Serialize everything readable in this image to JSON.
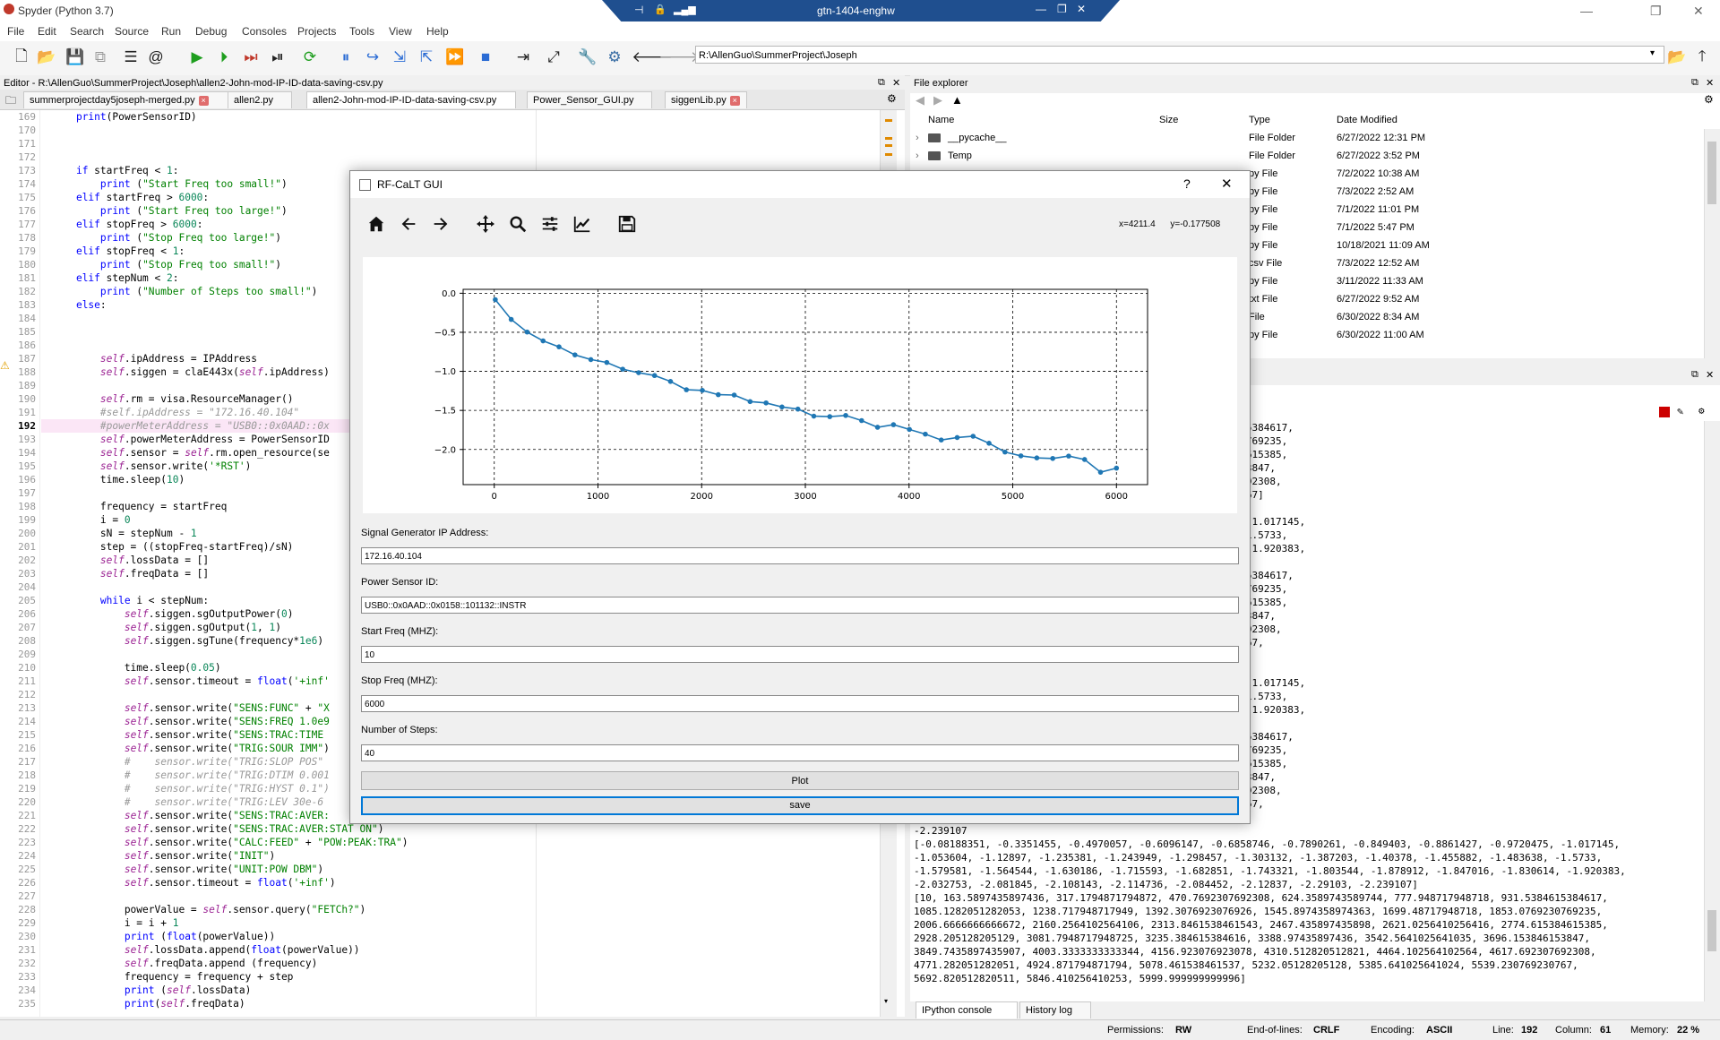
{
  "window": {
    "title": "Spyder (Python 3.7)",
    "remote_host": "gtn-1404-enghw"
  },
  "menu": [
    "File",
    "Edit",
    "Search",
    "Source",
    "Run",
    "Debug",
    "Consoles",
    "Projects",
    "Tools",
    "View",
    "Help"
  ],
  "path": "R:\\AllenGuo\\SummerProject\\Joseph",
  "editor": {
    "header": "Editor - R:\\AllenGuo\\SummerProject\\Joseph\\allen2-John-mod-IP-ID-data-saving-csv.py",
    "tabs": [
      "summerprojectday5joseph-merged.py",
      "allen2.py",
      "allen2-John-mod-IP-ID-data-saving-csv.py",
      "Power_Sensor_GUI.py",
      "siggenLib.py"
    ],
    "active_tab": 2,
    "line_numbers": [
      "169",
      "170",
      "171",
      "172",
      "173",
      "174",
      "175",
      "176",
      "177",
      "178",
      "179",
      "180",
      "181",
      "182",
      "183",
      "184",
      "185",
      "186",
      "187",
      "188",
      "189",
      "190",
      "191",
      "192",
      "193",
      "194",
      "195",
      "196",
      "197",
      "198",
      "199",
      "200",
      "201",
      "202",
      "203",
      "204",
      "205",
      "206",
      "207",
      "208",
      "209",
      "210",
      "211",
      "212",
      "213",
      "214",
      "215",
      "216",
      "217",
      "218",
      "219",
      "220",
      "221",
      "222",
      "223",
      "224",
      "225",
      "226",
      "227",
      "228",
      "229",
      "230",
      "231",
      "232",
      "233",
      "234",
      "235"
    ],
    "lines": [
      "    print(PowerSensorID)",
      "",
      "",
      "",
      "    if startFreq < 1:",
      "        print (\"Start Freq too small!\")",
      "    elif startFreq > 6000:",
      "        print (\"Start Freq too large!\")",
      "    elif stopFreq > 6000:",
      "        print (\"Stop Freq too large!\")",
      "    elif stopFreq < 1:",
      "        print (\"Stop Freq too small!\")",
      "    elif stepNum < 2:",
      "        print (\"Number of Steps too small!\")",
      "    else:",
      "",
      "",
      "",
      "        self.ipAddress = IPAddress",
      "        self.siggen = claE443x(self.ipAddress)",
      "",
      "        self.rm = visa.ResourceManager()",
      "        #self.ipAddress = \"172.16.40.104\"",
      "        #powerMeterAddress = \"USB0::0x0AAD::0x",
      "        self.powerMeterAddress = PowerSensorID",
      "        self.sensor = self.rm.open_resource(se",
      "        self.sensor.write('*RST')",
      "        time.sleep(10)",
      "",
      "        frequency = startFreq",
      "        i = 0",
      "        sN = stepNum - 1",
      "        step = ((stopFreq-startFreq)/sN)",
      "        self.lossData = []",
      "        self.freqData = []",
      "",
      "        while i < stepNum:",
      "            self.siggen.sgOutputPower(0)",
      "            self.siggen.sgOutput(1, 1)",
      "            self.siggen.sgTune(frequency*1e6)",
      "",
      "            time.sleep(0.05)",
      "            self.sensor.timeout = float('+inf'",
      "",
      "            self.sensor.write(\"SENS:FUNC\" + \"X",
      "            self.sensor.write(\"SENS:FREQ 1.0e9",
      "            self.sensor.write(\"SENS:TRAC:TIME",
      "            self.sensor.write(\"TRIG:SOUR IMM\")",
      "            #    sensor.write(\"TRIG:SLOP POS\"",
      "            #    sensor.write(\"TRIG:DTIM 0.001",
      "            #    sensor.write(\"TRIG:HYST 0.1\")",
      "            #    sensor.write(\"TRIG:LEV 30e-6",
      "            self.sensor.write(\"SENS:TRAC:AVER:",
      "            self.sensor.write(\"SENS:TRAC:AVER:STAT ON\")",
      "            self.sensor.write(\"CALC:FEED\" + \"POW:PEAK:TRA\")",
      "            self.sensor.write(\"INIT\")",
      "            self.sensor.write(\"UNIT:POW DBM\")",
      "            self.sensor.timeout = float('+inf')",
      "",
      "            powerValue = self.sensor.query(\"FETCh?\")",
      "            i = i + 1",
      "            print (float(powerValue))",
      "            self.lossData.append(float(powerValue))",
      "            self.freqData.append (frequency)",
      "            frequency = frequency + step",
      "            print (self.lossData)",
      "            print(self.freqData)"
    ]
  },
  "file_explorer": {
    "title": "File explorer",
    "columns": [
      "Name",
      "Size",
      "Type",
      "Date Modified"
    ],
    "rows": [
      {
        "name": "__pycache__",
        "type": "File Folder",
        "date": "6/27/2022 12:31 PM"
      },
      {
        "name": "Temp",
        "type": "File Folder",
        "date": "6/27/2022 3:52 PM"
      },
      {
        "name": "",
        "type": "py File",
        "date": "7/2/2022 10:38 AM"
      },
      {
        "name": "",
        "type": "py File",
        "date": "7/3/2022 2:52 AM"
      },
      {
        "name": "",
        "type": "py File",
        "date": "7/1/2022 11:01 PM"
      },
      {
        "name": "",
        "type": "py File",
        "date": "7/1/2022 5:47 PM"
      },
      {
        "name": "",
        "type": "py File",
        "date": "10/18/2021 11:09 AM"
      },
      {
        "name": "",
        "type": "csv File",
        "date": "7/3/2022 12:52 AM"
      },
      {
        "name": "",
        "type": "py File",
        "date": "3/11/2022 11:33 AM"
      },
      {
        "name": "",
        "type": "txt File",
        "date": "6/27/2022 9:52 AM"
      },
      {
        "name": "",
        "type": "File",
        "date": "6/30/2022 8:34 AM"
      },
      {
        "name": "",
        "type": "py File",
        "date": "6/30/2022 11:00 AM"
      }
    ]
  },
  "console": {
    "tabs": [
      "IPython console",
      "History log"
    ],
    "lines": [
      "7692308, 624.3589743589744, 777.948717948718, 931.5384615384617,",
      "5926, 1545.8974358974363, 1699.48717948718, 1853.0769230769235,",
      "1543, 2467.435897435898, 2621.0256410256416, 2774.615384615385,",
      "516, 3388.97435897436, 3542.5641025641035, 3696.153846153847,",
      "3078, 4310.512820512821, 4464.102564102564, 4617.692307692308,",
      "37, 5232.05128205128, 5385.641025641024, 5539.230769230767]",
      "",
      "6858746, -0.7890261, -0.849403, -0.8861427, -0.9720475, -1.017145,",
      " -1.303132, -1.387203, -1.40378, -1.455882, -1.483638, -1.5733,",
      " -1.743321, -1.803544, -1.878912, -1.847016, -1.830614, -1.920383,",
      " -2.12837]",
      "7692308, 624.3589743589744, 777.948717948718, 931.5384615384617,",
      "5926, 1545.8974358974363, 1699.48717948718, 1853.0769230769235,",
      "1543, 2467.435897435898, 2621.0256410256416, 2774.615384615385,",
      "516, 3388.97435897436, 3542.5641025641035, 3696.153846153847,",
      "3078, 4310.512820512821, 4464.102564102564, 4617.692307692308,",
      "37, 5232.05128205128, 5385.641025641024, 5539.230769230767,",
      "",
      "",
      "6858746, -0.7890261, -0.849403, -0.8861427, -0.9720475, -1.017145,",
      " -1.303132, -1.387203, -1.40378, -1.455882, -1.483638, -1.5733,",
      " -1.743321, -1.803544, -1.878912, -1.847016, -1.830614, -1.920383,",
      " -2.12837, -2.29103]",
      "7692308, 624.3589743589744, 777.948717948718, 931.5384615384617,",
      "5926, 1545.8974358974363, 1699.48717948718, 1853.0769230769235,",
      "1543, 2467.435897435898, 2621.0256410256416, 2774.615384615385,",
      "516, 3388.97435897436, 3542.5641025641035, 3696.153846153847,",
      "3078, 4310.512820512821, 4464.102564102564, 4617.692307692308,",
      "37, 5232.05128205128, 5385.641025641024, 5539.230769230767,",
      "",
      "-2.239107",
      "[-0.08188351, -0.3351455, -0.4970057, -0.6096147, -0.6858746, -0.7890261, -0.849403, -0.8861427, -0.9720475, -1.017145,",
      "-1.053604, -1.12897, -1.235381, -1.243949, -1.298457, -1.303132, -1.387203, -1.40378, -1.455882, -1.483638, -1.5733,",
      "-1.579581, -1.564544, -1.630186, -1.715593, -1.682851, -1.743321, -1.803544, -1.878912, -1.847016, -1.830614, -1.920383,",
      "-2.032753, -2.081845, -2.108143, -2.114736, -2.084452, -2.12837, -2.29103, -2.239107]",
      "[10, 163.5897435897436, 317.1794871794872, 470.7692307692308, 624.3589743589744, 777.948717948718, 931.5384615384617,",
      "1085.1282051282053, 1238.717948717949, 1392.3076923076926, 1545.8974358974363, 1699.48717948718, 1853.0769230769235,",
      "2006.6666666666672, 2160.2564102564106, 2313.8461538461543, 2467.435897435898, 2621.0256410256416, 2774.615384615385,",
      "2928.205128205129, 3081.7948717948725, 3235.384615384616, 3388.97435897436, 3542.5641025641035, 3696.153846153847,",
      "3849.7435897435907, 4003.3333333333344, 4156.923076923078, 4310.512820512821, 4464.102564102564, 4617.692307692308,",
      "4771.282051282051, 4924.871794871794, 5078.461538461537, 5232.05128205128, 5385.641025641024, 5539.230769230767,",
      "5692.820512820511, 5846.410256410253, 5999.999999999996]"
    ]
  },
  "status": {
    "permissions_label": "Permissions:",
    "permissions": "RW",
    "eol_label": "End-of-lines:",
    "eol": "CRLF",
    "encoding_label": "Encoding:",
    "encoding": "ASCII",
    "line_label": "Line:",
    "line": "192",
    "column_label": "Column:",
    "column": "61",
    "memory_label": "Memory:",
    "memory": "22 %"
  },
  "dialog": {
    "title": "RF-CaLT GUI",
    "help": "?",
    "coords": "x=4211.4      y=-0.177508",
    "fields": [
      {
        "label": "Signal Generator IP Address:",
        "value": "172.16.40.104"
      },
      {
        "label": "Power Sensor ID:",
        "value": "USB0::0x0AAD::0x0158::101132::INSTR"
      },
      {
        "label": "Start Freq (MHZ):",
        "value": "10"
      },
      {
        "label": "Stop Freq (MHZ):",
        "value": "6000"
      },
      {
        "label": "Number of Steps:",
        "value": "40"
      }
    ],
    "plot_button": "Plot",
    "save_button": "save"
  },
  "chart_data": {
    "type": "line",
    "xlim": [
      -300,
      6300
    ],
    "ylim": [
      -2.45,
      0.05
    ],
    "xticks": [
      "0",
      "1000",
      "2000",
      "3000",
      "4000",
      "5000",
      "6000"
    ],
    "yticks": [
      "0.0",
      "−0.5",
      "−1.0",
      "−1.5",
      "−2.0"
    ],
    "grid": true,
    "color": "#1f77b4",
    "x": [
      10,
      163.59,
      317.18,
      470.77,
      624.36,
      777.95,
      931.54,
      1085.13,
      1238.72,
      1392.31,
      1545.9,
      1699.49,
      1853.08,
      2006.67,
      2160.26,
      2313.85,
      2467.44,
      2621.03,
      2774.62,
      2928.21,
      3081.79,
      3235.38,
      3388.97,
      3542.56,
      3696.15,
      3849.74,
      4003.33,
      4156.92,
      4310.51,
      4464.1,
      4617.69,
      4771.28,
      4924.87,
      5078.46,
      5232.05,
      5385.64,
      5539.23,
      5692.82,
      5846.41,
      6000
    ],
    "y": [
      -0.08188351,
      -0.3351455,
      -0.4970057,
      -0.6096147,
      -0.6858746,
      -0.7890261,
      -0.849403,
      -0.8861427,
      -0.9720475,
      -1.017145,
      -1.053604,
      -1.12897,
      -1.235381,
      -1.243949,
      -1.298457,
      -1.303132,
      -1.387203,
      -1.40378,
      -1.455882,
      -1.483638,
      -1.5733,
      -1.579581,
      -1.564544,
      -1.630186,
      -1.715593,
      -1.682851,
      -1.743321,
      -1.803544,
      -1.878912,
      -1.847016,
      -1.830614,
      -1.920383,
      -2.032753,
      -2.081845,
      -2.108143,
      -2.114736,
      -2.084452,
      -2.12837,
      -2.29103,
      -2.239107
    ]
  }
}
